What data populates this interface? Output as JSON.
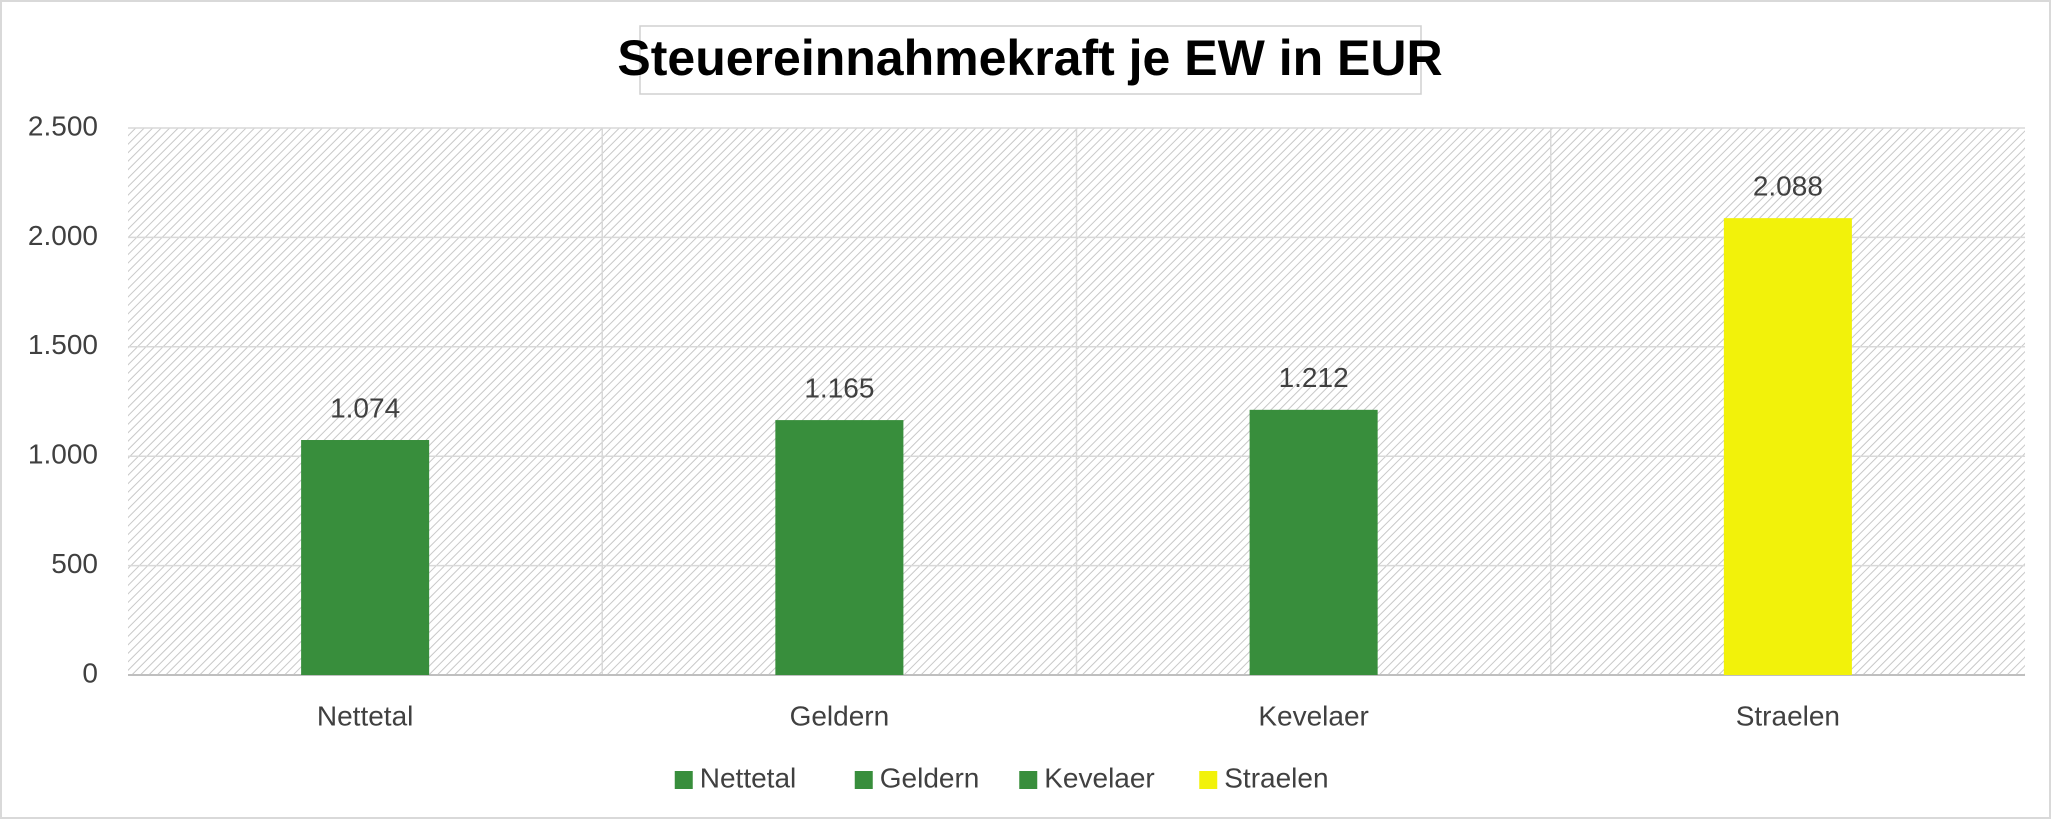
{
  "chart_data": {
    "type": "bar",
    "title": "Steuereinnahmekraft je EW in EUR",
    "categories": [
      "Nettetal",
      "Geldern",
      "Kevelaer",
      "Straelen"
    ],
    "values": [
      1074,
      1165,
      1212,
      2088
    ],
    "value_labels": [
      "1.074",
      "1.165",
      "1.212",
      "2.088"
    ],
    "colors": [
      "#388e3c",
      "#388e3c",
      "#388e3c",
      "#f2f20a"
    ],
    "ylim": [
      0,
      2500
    ],
    "yticks": [
      0,
      500,
      {
        "value": 1000,
        "label": "1.000"
      },
      {
        "value": 1500,
        "label": "1.500"
      },
      {
        "value": 2000,
        "label": "2.000"
      },
      {
        "value": 2500,
        "label": "2.500"
      }
    ],
    "grid": true,
    "legend": "bottom"
  }
}
